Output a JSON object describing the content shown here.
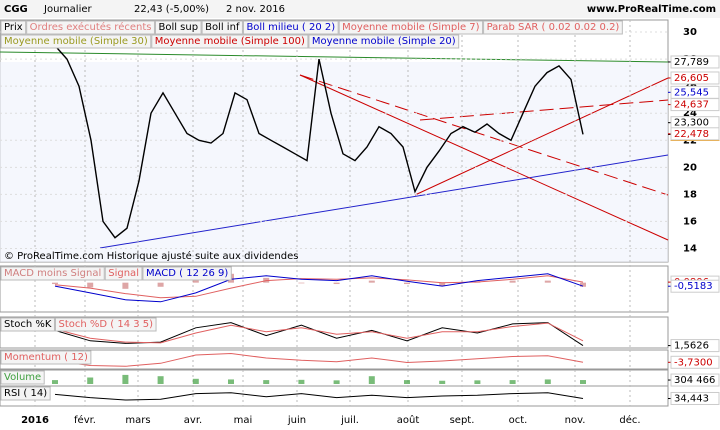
{
  "header": {
    "symbol": "CGG",
    "period": "Journalier",
    "last": "22,43 (-5,00%)",
    "date": "2 nov. 2016",
    "site": "www.ProRealTime.com"
  },
  "chart_data": [
    {
      "type": "line",
      "ylim": [
        13,
        30.3
      ],
      "yticks": [
        14,
        16,
        18,
        20,
        22,
        24,
        26,
        28,
        30
      ],
      "months": [
        "2016",
        "févr.",
        "mars",
        "avr.",
        "mai",
        "juin",
        "juil.",
        "août",
        "sept.",
        "oct.",
        "nov.",
        "déc."
      ],
      "legend": [
        {
          "name": "Prix",
          "color": "#000000"
        },
        {
          "name": "Ordres exécutés récents",
          "color": "#e08080"
        },
        {
          "name": "Boll sup",
          "color": "#000000"
        },
        {
          "name": "Boll inf",
          "color": "#000000"
        },
        {
          "name": "Boll milieu ( 20 2)",
          "color": "#0000cc"
        },
        {
          "name": "Moyenne mobile (Simple 7)",
          "color": "#e06060"
        },
        {
          "name": "Parab SAR ( 0.02 0.02 0.2)",
          "color": "#e06060"
        },
        {
          "name": "Moyenne mobile (Simple 30)",
          "color": "#9a9a20"
        },
        {
          "name": "Moyenne mobile (Simple 100)",
          "color": "#cc0000"
        },
        {
          "name": "Moyenne mobile (Simple 20)",
          "color": "#0000cc"
        }
      ],
      "series": [
        {
          "name": "Prix",
          "color": "#000000",
          "values": [
            29,
            28,
            26,
            22,
            16,
            14.8,
            15.5,
            19,
            24,
            25.5,
            24,
            22.5,
            22,
            21.8,
            22.5,
            25.5,
            25,
            22.5,
            22,
            21.5,
            21,
            20.5,
            28,
            24,
            21,
            20.5,
            21.5,
            23,
            22.5,
            21.5,
            18.2,
            20,
            21.2,
            22.5,
            23,
            22.6,
            23.2,
            22.5,
            22,
            24,
            26,
            27,
            27.5,
            26.5,
            22.43
          ]
        }
      ],
      "tags": [
        {
          "value": 27.789,
          "label": "27,789",
          "color": "#000000"
        },
        {
          "value": 26.605,
          "label": "26,605",
          "color": "#cc0000"
        },
        {
          "value": 25.545,
          "label": "25,545",
          "color": "#0000cc"
        },
        {
          "value": 24.637,
          "label": "24,637",
          "color": "#cc0000"
        },
        {
          "value": 23.3,
          "label": "23,300",
          "color": "#000000"
        },
        {
          "value": 22.43,
          "label": "22,43",
          "color": "#000000",
          "background": "#f0a020"
        },
        {
          "value": 22.478,
          "label": "22,478",
          "color": "#cc0000"
        }
      ],
      "note": "© ProRealTime.com Historique ajusté suite aux dividendes"
    },
    {
      "type": "line",
      "ylim": [
        -4,
        2
      ],
      "series": [
        {
          "name": "MACD moins Signal",
          "color": "#d08080",
          "kind": "bar",
          "values": [
            -0.2,
            -0.7,
            -0.9,
            -0.6,
            0.5,
            1.3,
            0.7,
            -0.1,
            -0.2,
            0.3,
            -0.2,
            -0.5,
            0.2,
            0.3,
            0.3,
            -0.6
          ]
        },
        {
          "name": "Signal",
          "color": "#e06060",
          "values": [
            -0.3,
            -0.8,
            -1.6,
            -2.2,
            -2,
            -0.8,
            0.3,
            0.6,
            0.5,
            0.7,
            0.4,
            0,
            0.1,
            0.5,
            1,
            0.0806
          ]
        },
        {
          "name": "MACD ( 12 26 9)",
          "color": "#0000cc",
          "values": [
            -0.5,
            -1.5,
            -2.5,
            -2.8,
            -1.5,
            0.5,
            1,
            0.5,
            0.3,
            1,
            0.2,
            -0.5,
            0.3,
            0.8,
            1.3,
            -0.5183
          ]
        }
      ],
      "tags": [
        {
          "value": 0.0806,
          "label": "0,0806",
          "color": "#cc0000"
        },
        {
          "value": -0.5183,
          "label": "-0,5183",
          "color": "#0000cc"
        }
      ]
    },
    {
      "type": "line",
      "ylim": [
        0,
        100
      ],
      "series": [
        {
          "name": "Stoch %K",
          "color": "#000000",
          "values": [
            60,
            20,
            10,
            15,
            70,
            90,
            40,
            80,
            30,
            60,
            20,
            70,
            50,
            85,
            90,
            1.5626
          ]
        },
        {
          "name": "Stoch %D ( 14 3 5)",
          "color": "#e06060",
          "values": [
            65,
            30,
            15,
            12,
            50,
            80,
            55,
            70,
            45,
            55,
            30,
            55,
            55,
            75,
            88,
            20
          ]
        }
      ],
      "tags": [
        {
          "value": 1.5626,
          "label": "1,5626",
          "color": "#000000"
        }
      ]
    },
    {
      "type": "line",
      "ylim": [
        -10,
        10
      ],
      "series": [
        {
          "name": "Momentum ( 12)",
          "color": "#e06060",
          "values": [
            -2,
            -8,
            -9,
            -5,
            6,
            8,
            2,
            -1,
            -3,
            2,
            -4,
            -2,
            1,
            4,
            5,
            -3.73
          ]
        }
      ],
      "tags": [
        {
          "value": -3.73,
          "label": "-3,7300",
          "color": "#cc0000"
        }
      ]
    },
    {
      "type": "line",
      "ylim": [
        0,
        1000000
      ],
      "series": [
        {
          "name": "Volume",
          "color": "#40a040",
          "kind": "bar",
          "values": [
            300000,
            500000,
            700000,
            600000,
            400000,
            350000,
            300000,
            320000,
            280000,
            600000,
            300000,
            250000,
            280000,
            300000,
            350000,
            304466
          ]
        }
      ],
      "tags": [
        {
          "value": 304466,
          "label": "304 466",
          "color": "#000000"
        }
      ]
    },
    {
      "type": "line",
      "ylim": [
        0,
        100
      ],
      "series": [
        {
          "name": "RSI ( 14)",
          "color": "#000000",
          "values": [
            60,
            40,
            25,
            30,
            65,
            70,
            45,
            65,
            40,
            55,
            40,
            50,
            55,
            65,
            70,
            34.443
          ]
        }
      ],
      "tags": [
        {
          "value": 34.443,
          "label": "34,443",
          "color": "#000000"
        }
      ]
    }
  ]
}
